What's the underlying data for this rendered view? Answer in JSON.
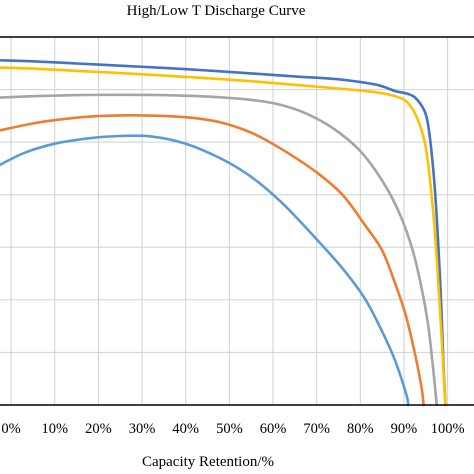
{
  "chart_data": {
    "type": "line",
    "title": "High/Low T Discharge Curve",
    "xlabel": "Capacity Retention/%",
    "ylabel": "",
    "x_ticks": [
      "0%",
      "10%",
      "20%",
      "30%",
      "40%",
      "50%",
      "60%",
      "70%",
      "80%",
      "90%",
      "100%"
    ],
    "xlim": [
      -0.03,
      1.065
    ],
    "ylim": [
      0,
      1
    ],
    "grid": true,
    "legend": "none",
    "series": [
      {
        "color": "#4472C4",
        "points": [
          [
            -0.03,
            0.937
          ],
          [
            0.05,
            0.934
          ],
          [
            0.15,
            0.928
          ],
          [
            0.25,
            0.922
          ],
          [
            0.35,
            0.916
          ],
          [
            0.45,
            0.909
          ],
          [
            0.55,
            0.901
          ],
          [
            0.65,
            0.893
          ],
          [
            0.75,
            0.885
          ],
          [
            0.82,
            0.874
          ],
          [
            0.85,
            0.866
          ],
          [
            0.88,
            0.853
          ],
          [
            0.91,
            0.845
          ],
          [
            0.93,
            0.83
          ],
          [
            0.95,
            0.79
          ],
          [
            0.96,
            0.72
          ],
          [
            0.97,
            0.6
          ],
          [
            0.978,
            0.45
          ],
          [
            0.985,
            0.28
          ],
          [
            0.99,
            0.12
          ],
          [
            0.995,
            0.0
          ]
        ]
      },
      {
        "color": "#FFC000",
        "points": [
          [
            -0.03,
            0.917
          ],
          [
            0.05,
            0.914
          ],
          [
            0.15,
            0.908
          ],
          [
            0.25,
            0.902
          ],
          [
            0.35,
            0.895
          ],
          [
            0.45,
            0.888
          ],
          [
            0.55,
            0.88
          ],
          [
            0.65,
            0.87
          ],
          [
            0.75,
            0.86
          ],
          [
            0.82,
            0.852
          ],
          [
            0.86,
            0.845
          ],
          [
            0.89,
            0.835
          ],
          [
            0.91,
            0.82
          ],
          [
            0.93,
            0.78
          ],
          [
            0.95,
            0.7
          ],
          [
            0.965,
            0.55
          ],
          [
            0.975,
            0.4
          ],
          [
            0.983,
            0.25
          ],
          [
            0.99,
            0.1
          ],
          [
            0.995,
            0.0
          ]
        ]
      },
      {
        "color": "#A5A5A5",
        "points": [
          [
            -0.03,
            0.835
          ],
          [
            0.05,
            0.839
          ],
          [
            0.15,
            0.842
          ],
          [
            0.25,
            0.843
          ],
          [
            0.35,
            0.842
          ],
          [
            0.45,
            0.838
          ],
          [
            0.55,
            0.829
          ],
          [
            0.62,
            0.815
          ],
          [
            0.68,
            0.79
          ],
          [
            0.74,
            0.75
          ],
          [
            0.8,
            0.69
          ],
          [
            0.85,
            0.61
          ],
          [
            0.89,
            0.52
          ],
          [
            0.92,
            0.42
          ],
          [
            0.94,
            0.32
          ],
          [
            0.955,
            0.22
          ],
          [
            0.965,
            0.12
          ],
          [
            0.975,
            0.0
          ]
        ]
      },
      {
        "color": "#ED7D31",
        "points": [
          [
            -0.03,
            0.745
          ],
          [
            0.05,
            0.765
          ],
          [
            0.12,
            0.777
          ],
          [
            0.2,
            0.785
          ],
          [
            0.3,
            0.787
          ],
          [
            0.4,
            0.782
          ],
          [
            0.48,
            0.768
          ],
          [
            0.55,
            0.74
          ],
          [
            0.62,
            0.695
          ],
          [
            0.7,
            0.632
          ],
          [
            0.76,
            0.57
          ],
          [
            0.81,
            0.49
          ],
          [
            0.85,
            0.42
          ],
          [
            0.88,
            0.33
          ],
          [
            0.905,
            0.24
          ],
          [
            0.925,
            0.14
          ],
          [
            0.94,
            0.05
          ],
          [
            0.945,
            0.0
          ]
        ]
      },
      {
        "color": "#5B9BD5",
        "points": [
          [
            -0.03,
            0.65
          ],
          [
            0.03,
            0.685
          ],
          [
            0.1,
            0.71
          ],
          [
            0.18,
            0.725
          ],
          [
            0.25,
            0.731
          ],
          [
            0.32,
            0.73
          ],
          [
            0.4,
            0.71
          ],
          [
            0.48,
            0.67
          ],
          [
            0.55,
            0.62
          ],
          [
            0.62,
            0.55
          ],
          [
            0.7,
            0.45
          ],
          [
            0.76,
            0.37
          ],
          [
            0.81,
            0.29
          ],
          [
            0.85,
            0.2
          ],
          [
            0.88,
            0.12
          ],
          [
            0.905,
            0.03
          ],
          [
            0.91,
            0.0
          ]
        ]
      }
    ]
  }
}
